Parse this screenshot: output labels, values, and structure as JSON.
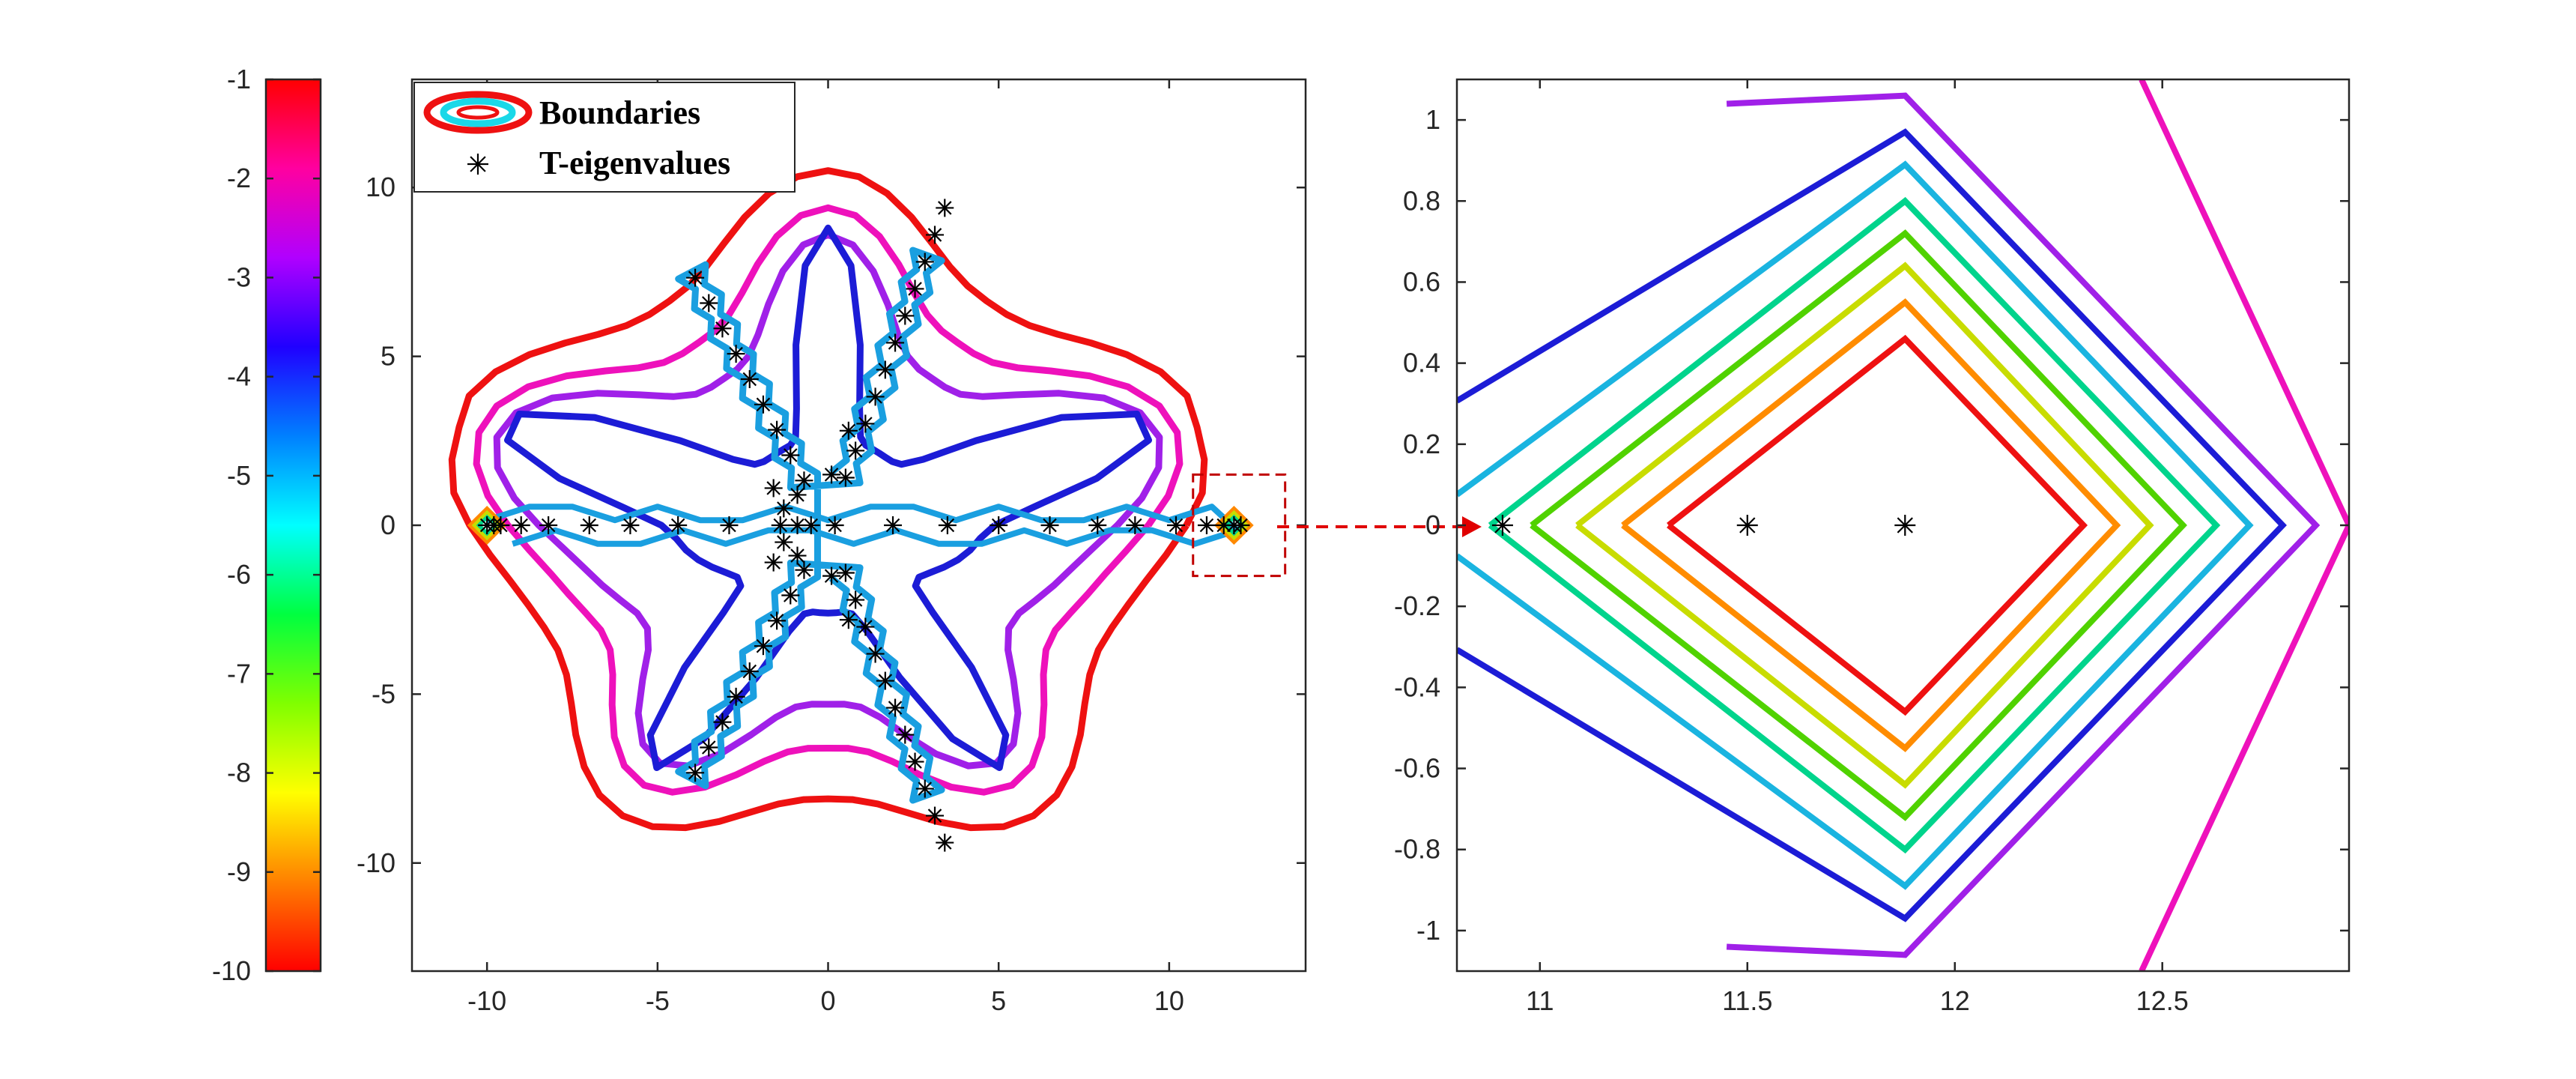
{
  "chart_data": [
    {
      "type": "colorbar",
      "tick_labels": [
        "-1",
        "-2",
        "-3",
        "-4",
        "-5",
        "-6",
        "-7",
        "-8",
        "-9",
        "-10"
      ],
      "ticks": [
        -1,
        -2,
        -3,
        -4,
        -5,
        -6,
        -7,
        -8,
        -9,
        -10
      ],
      "range": [
        -10,
        -1
      ],
      "colormap": [
        "#ff0000",
        "#ff00a0",
        "#b000ff",
        "#2000ff",
        "#0080ff",
        "#00ffff",
        "#00ff40",
        "#80ff00",
        "#ffff00",
        "#ff8000",
        "#ff0000"
      ]
    },
    {
      "type": "contour",
      "title": "",
      "xlabel": "",
      "ylabel": "",
      "xlim": [
        -12.2,
        14
      ],
      "ylim": [
        -13.2,
        13.2
      ],
      "xticks": [
        -10,
        -5,
        0,
        5,
        10
      ],
      "yticks": [
        -10,
        -5,
        0,
        5,
        10
      ],
      "xtick_labels": [
        "-10",
        "-5",
        "0",
        "5",
        "10"
      ],
      "ytick_labels": [
        "-10",
        "-5",
        "0",
        "5",
        "10"
      ],
      "legend": {
        "placement": "top-left",
        "entries": [
          {
            "label": "Boundaries",
            "marker": "contour"
          },
          {
            "label": "T-eigenvalues",
            "marker": "asterisk"
          }
        ]
      },
      "contours": [
        {
          "level": -1,
          "color": "#ee1111",
          "shape": "star",
          "a": 8.1,
          "b": 2.4,
          "c": 1.4,
          "e": 2.5,
          "rmax": 11.2
        },
        {
          "level": -2,
          "color": "#ee11bb",
          "shape": "star",
          "a": 6.6,
          "b": 2.8,
          "c": 1.8,
          "e": 3,
          "rmax": 10.6
        },
        {
          "level": -3,
          "color": "#a020e8",
          "shape": "star",
          "a": 5.3,
          "b": 3.3,
          "c": 2.2,
          "e": 3.5,
          "rmax": 10.2
        },
        {
          "level": -4,
          "color": "#1c1cd6",
          "shape": "star",
          "a": 2.6,
          "b": 6.2,
          "c": 1.9,
          "e": 8,
          "rmax": 10
        },
        {
          "level": -5,
          "color": "#1a9fe0",
          "shape": "spine"
        }
      ],
      "eigenvalues": {
        "real_axis": [
          -10,
          -9.8,
          -9.6,
          -9,
          -8.2,
          -7,
          -5.8,
          -4.4,
          -2.9,
          -1.4,
          -0.9,
          -0.5,
          0.2,
          1.9,
          3.5,
          5,
          6.5,
          7.9,
          9,
          10.2,
          11.1,
          11.6,
          11.9,
          12.1
        ],
        "arms": [
          {
            "angle_deg": 70,
            "r_start": 1.5,
            "r_end": 10
          },
          {
            "angle_deg": 118,
            "r_start": 1.5,
            "r_end": 9
          }
        ],
        "inner": [
          [
            -1.3,
            0.5
          ],
          [
            -1.6,
            1.1
          ],
          [
            -0.9,
            0.9
          ],
          [
            0.1,
            1.5
          ],
          [
            0.6,
            2.8
          ]
        ]
      },
      "zoom_box": {
        "x": [
          10.7,
          13.4
        ],
        "y": [
          -1.5,
          1.5
        ]
      }
    },
    {
      "type": "contour",
      "title": "",
      "xlabel": "",
      "ylabel": "",
      "xlim": [
        10.8,
        12.95
      ],
      "ylim": [
        -1.1,
        1.1
      ],
      "xticks": [
        11,
        11.5,
        12,
        12.5
      ],
      "yticks": [
        1,
        0.8,
        0.6,
        0.4,
        0.2,
        0,
        -0.2,
        -0.4,
        -0.6,
        -0.8,
        -1
      ],
      "xtick_labels": [
        "11",
        "11.5",
        "12",
        "12.5"
      ],
      "ytick_labels": [
        "1",
        "0.8",
        "0.6",
        "0.4",
        "0.2",
        "0",
        "-0.2",
        "-0.4",
        "-0.6",
        "-0.8",
        "-1"
      ],
      "diamonds": [
        {
          "color": "#ee1111",
          "left": 11.31,
          "right": 12.31,
          "top": 0.46,
          "bottom": -0.46
        },
        {
          "color": "#ff8c00",
          "left": 11.2,
          "right": 12.39,
          "top": 0.55,
          "bottom": -0.55
        },
        {
          "color": "#c8dc00",
          "left": 11.09,
          "right": 12.47,
          "top": 0.64,
          "bottom": -0.64
        },
        {
          "color": "#50d200",
          "left": 10.98,
          "right": 12.55,
          "top": 0.72,
          "bottom": -0.72
        },
        {
          "color": "#00d48c",
          "left": 10.88,
          "right": 12.63,
          "top": 0.8,
          "bottom": -0.8
        },
        {
          "color": "#1ab4e0",
          "left": 10.7,
          "right": 12.71,
          "top": 0.89,
          "bottom": -0.89
        },
        {
          "color": "#1c1cd6",
          "left": 10.3,
          "right": 12.79,
          "top": 0.97,
          "bottom": -0.97
        },
        {
          "color": "#a020e8",
          "left": 10.2,
          "right": 12.87,
          "top": 1.06,
          "bottom": -1.06,
          "top_left": 11.45,
          "bottom_left": 11.45
        },
        {
          "color": "#ee11bb",
          "type": "chevron",
          "tip": [
            12.95,
            0
          ],
          "top": [
            12.45,
            1.1
          ],
          "bottom": [
            12.45,
            -1.1
          ]
        }
      ],
      "eigenvalues": [
        [
          10.91,
          0
        ],
        [
          11.5,
          0
        ],
        [
          11.88,
          0
        ]
      ]
    }
  ]
}
